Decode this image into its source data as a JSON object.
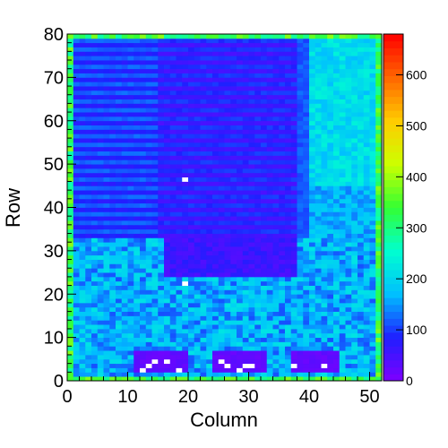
{
  "chart_data": {
    "type": "heatmap",
    "title": "",
    "xlabel": "Column",
    "ylabel": "Row",
    "xlim": [
      0,
      52
    ],
    "ylim": [
      0,
      80
    ],
    "x_ticks": [
      0,
      10,
      20,
      30,
      40,
      50
    ],
    "y_ticks": [
      0,
      10,
      20,
      30,
      40,
      50,
      60,
      70,
      80
    ],
    "colorbar": {
      "min": 0,
      "max": 680,
      "ticks": [
        0,
        100,
        200,
        300,
        400,
        500,
        600
      ],
      "palette": [
        "#7f00ff",
        "#1f1fff",
        "#00bfff",
        "#00ffd0",
        "#33ff33",
        "#ccff00",
        "#ffcc00",
        "#ff6600",
        "#ff0000"
      ]
    },
    "regions": [
      {
        "name": "upper-left block",
        "cols": [
          0,
          40
        ],
        "rows": [
          33,
          80
        ],
        "typical_value": 60
      },
      {
        "name": "upper-right block",
        "cols": [
          40,
          52
        ],
        "rows": [
          33,
          80
        ],
        "typical_value": 190
      },
      {
        "name": "lower block",
        "cols": [
          0,
          52
        ],
        "rows": [
          0,
          33
        ],
        "typical_value": 160
      },
      {
        "name": "hot spots near bottom",
        "cols": [
          12,
          44
        ],
        "rows": [
          2,
          6
        ],
        "typical_value": 20
      }
    ]
  }
}
